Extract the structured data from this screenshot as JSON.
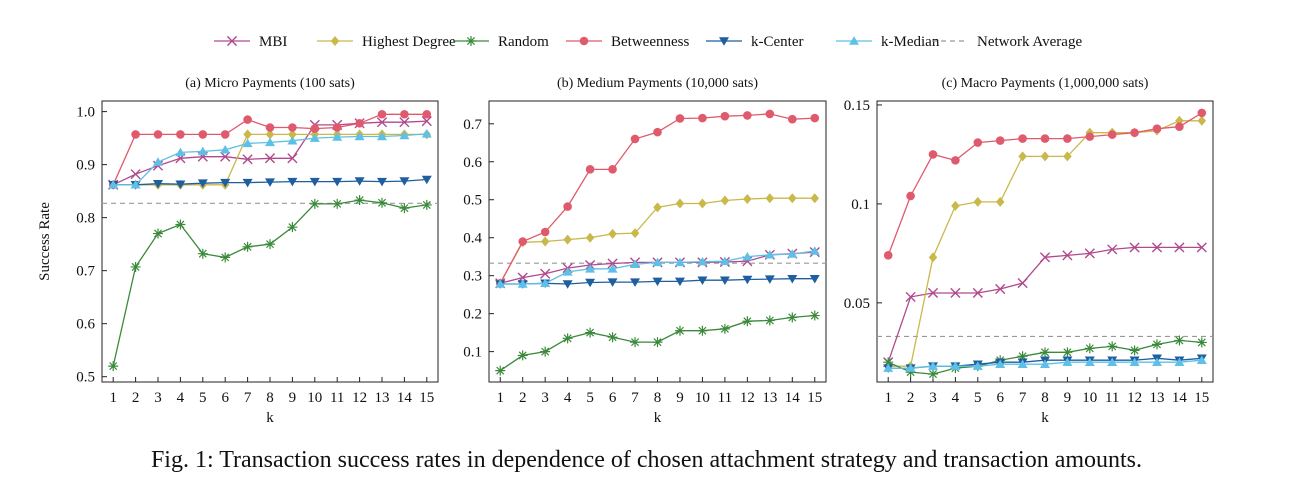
{
  "caption": "Fig. 1: Transaction success rates in dependence of chosen attachment strategy and transaction amounts.",
  "legend": [
    {
      "name": "MBI",
      "color": "#b04a8c",
      "marker": "x",
      "dashed": false
    },
    {
      "name": "Highest Degree",
      "color": "#c9b84a",
      "marker": "diamond",
      "dashed": false
    },
    {
      "name": "Random",
      "color": "#3a8a3a",
      "marker": "star",
      "dashed": false
    },
    {
      "name": "Betweenness",
      "color": "#e05a6e",
      "marker": "circle",
      "dashed": false
    },
    {
      "name": "k-Center",
      "color": "#1f5fa0",
      "marker": "tri-down",
      "dashed": false
    },
    {
      "name": "k-Median",
      "color": "#5ec0e6",
      "marker": "tri-up",
      "dashed": false
    },
    {
      "name": "Network Average",
      "color": "#999999",
      "marker": "none",
      "dashed": true
    }
  ],
  "chart_data": [
    {
      "type": "line",
      "title": "(a) Micro Payments (100 sats)",
      "xlabel": "k",
      "ylabel": "Success Rate",
      "x": [
        1,
        2,
        3,
        4,
        5,
        6,
        7,
        8,
        9,
        10,
        11,
        12,
        13,
        14,
        15
      ],
      "xlim": [
        0.5,
        15.5
      ],
      "ylim": [
        0.49,
        1.02
      ],
      "yticks": [
        0.5,
        0.6,
        0.7,
        0.8,
        0.9,
        1.0
      ],
      "ytick_labels": [
        "0.5",
        "0.6",
        "0.7",
        "0.8",
        "0.9",
        "1.0"
      ],
      "grid": false,
      "reference_line": 0.827,
      "series": [
        {
          "name": "MBI",
          "values": [
            0.862,
            0.882,
            0.898,
            0.912,
            0.915,
            0.915,
            0.91,
            0.912,
            0.912,
            0.975,
            0.975,
            0.978,
            0.98,
            0.98,
            0.982
          ]
        },
        {
          "name": "Highest Degree",
          "values": [
            0.862,
            0.862,
            0.862,
            0.862,
            0.862,
            0.862,
            0.957,
            0.957,
            0.957,
            0.957,
            0.957,
            0.957,
            0.957,
            0.957,
            0.957
          ]
        },
        {
          "name": "Random",
          "values": [
            0.52,
            0.707,
            0.77,
            0.787,
            0.732,
            0.725,
            0.745,
            0.75,
            0.782,
            0.826,
            0.826,
            0.833,
            0.828,
            0.818,
            0.824
          ]
        },
        {
          "name": "Betweenness",
          "values": [
            0.862,
            0.957,
            0.957,
            0.957,
            0.957,
            0.957,
            0.985,
            0.97,
            0.97,
            0.968,
            0.97,
            0.978,
            0.995,
            0.995,
            0.995
          ]
        },
        {
          "name": "k-Center",
          "values": [
            0.862,
            0.862,
            0.864,
            0.863,
            0.865,
            0.866,
            0.866,
            0.867,
            0.868,
            0.868,
            0.868,
            0.869,
            0.868,
            0.869,
            0.872
          ]
        },
        {
          "name": "k-Median",
          "values": [
            0.862,
            0.862,
            0.905,
            0.923,
            0.925,
            0.928,
            0.94,
            0.942,
            0.945,
            0.95,
            0.952,
            0.953,
            0.953,
            0.955,
            0.958
          ]
        }
      ]
    },
    {
      "type": "line",
      "title": "(b) Medium Payments (10,000 sats)",
      "xlabel": "k",
      "ylabel": "",
      "x": [
        1,
        2,
        3,
        4,
        5,
        6,
        7,
        8,
        9,
        10,
        11,
        12,
        13,
        14,
        15
      ],
      "xlim": [
        0.5,
        15.5
      ],
      "ylim": [
        0.02,
        0.76
      ],
      "yticks": [
        0.1,
        0.2,
        0.3,
        0.4,
        0.5,
        0.6,
        0.7
      ],
      "ytick_labels": [
        "0.1",
        "0.2",
        "0.3",
        "0.4",
        "0.5",
        "0.6",
        "0.7"
      ],
      "grid": false,
      "reference_line": 0.333,
      "series": [
        {
          "name": "MBI",
          "values": [
            0.28,
            0.295,
            0.305,
            0.32,
            0.328,
            0.332,
            0.335,
            0.335,
            0.335,
            0.335,
            0.336,
            0.338,
            0.355,
            0.358,
            0.362
          ]
        },
        {
          "name": "Highest Degree",
          "values": [
            0.28,
            0.388,
            0.39,
            0.395,
            0.4,
            0.41,
            0.412,
            0.48,
            0.49,
            0.49,
            0.498,
            0.502,
            0.504,
            0.504,
            0.504
          ]
        },
        {
          "name": "Random",
          "values": [
            0.05,
            0.09,
            0.1,
            0.135,
            0.15,
            0.138,
            0.125,
            0.125,
            0.155,
            0.155,
            0.16,
            0.18,
            0.182,
            0.19,
            0.195
          ]
        },
        {
          "name": "Betweenness",
          "values": [
            0.28,
            0.39,
            0.415,
            0.482,
            0.58,
            0.58,
            0.66,
            0.678,
            0.714,
            0.715,
            0.72,
            0.722,
            0.726,
            0.712,
            0.715
          ]
        },
        {
          "name": "k-Center",
          "values": [
            0.278,
            0.278,
            0.28,
            0.278,
            0.282,
            0.283,
            0.283,
            0.285,
            0.285,
            0.288,
            0.288,
            0.29,
            0.291,
            0.292,
            0.292
          ]
        },
        {
          "name": "k-Median",
          "values": [
            0.278,
            0.278,
            0.28,
            0.31,
            0.318,
            0.318,
            0.33,
            0.335,
            0.335,
            0.337,
            0.338,
            0.35,
            0.355,
            0.357,
            0.365
          ]
        }
      ]
    },
    {
      "type": "line",
      "title": "(c) Macro Payments (1,000,000 sats)",
      "xlabel": "k",
      "ylabel": "",
      "x": [
        1,
        2,
        3,
        4,
        5,
        6,
        7,
        8,
        9,
        10,
        11,
        12,
        13,
        14,
        15
      ],
      "xlim": [
        0.5,
        15.5
      ],
      "ylim": [
        0.01,
        0.152
      ],
      "yticks": [
        0.05,
        0.1,
        0.15
      ],
      "ytick_labels": [
        "0.05",
        "0.1",
        "0.15"
      ],
      "grid": false,
      "reference_line": 0.033,
      "series": [
        {
          "name": "MBI",
          "values": [
            0.02,
            0.053,
            0.055,
            0.055,
            0.055,
            0.057,
            0.06,
            0.073,
            0.074,
            0.075,
            0.077,
            0.078,
            0.078,
            0.078,
            0.078
          ]
        },
        {
          "name": "Highest Degree",
          "values": [
            0.018,
            0.018,
            0.073,
            0.099,
            0.101,
            0.101,
            0.124,
            0.124,
            0.124,
            0.136,
            0.136,
            0.136,
            0.137,
            0.142,
            0.142
          ]
        },
        {
          "name": "Random",
          "values": [
            0.02,
            0.015,
            0.014,
            0.017,
            0.018,
            0.021,
            0.023,
            0.025,
            0.025,
            0.027,
            0.028,
            0.026,
            0.029,
            0.031,
            0.03
          ]
        },
        {
          "name": "Betweenness",
          "values": [
            0.074,
            0.104,
            0.125,
            0.122,
            0.131,
            0.132,
            0.133,
            0.133,
            0.133,
            0.134,
            0.135,
            0.136,
            0.138,
            0.139,
            0.146
          ]
        },
        {
          "name": "k-Center",
          "values": [
            0.017,
            0.017,
            0.018,
            0.018,
            0.019,
            0.02,
            0.02,
            0.021,
            0.021,
            0.021,
            0.021,
            0.021,
            0.022,
            0.021,
            0.022
          ]
        },
        {
          "name": "k-Median",
          "values": [
            0.017,
            0.017,
            0.018,
            0.018,
            0.018,
            0.019,
            0.019,
            0.019,
            0.02,
            0.02,
            0.02,
            0.02,
            0.02,
            0.02,
            0.021
          ]
        }
      ]
    }
  ]
}
